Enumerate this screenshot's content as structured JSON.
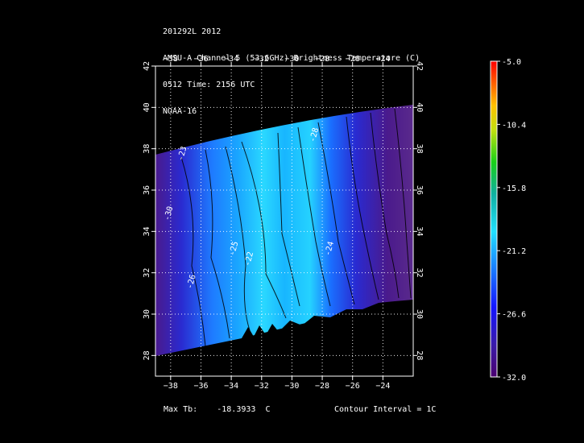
{
  "header": {
    "line1": "201292L 2012",
    "line2": "AMSU-A Channel 5 (53.6GHz) Brightness Temperature (C)",
    "line3": "0512 Time: 2156 UTC",
    "line4": "NOAA-16"
  },
  "footer": {
    "max_label": "Max Tb:",
    "max_value": "-18.3933",
    "max_unit": "C",
    "contour_label": "Contour Interval = 1C"
  },
  "chart_data": {
    "type": "heatmap",
    "xlim": [
      -39,
      -22
    ],
    "ylim": [
      27,
      42
    ],
    "x_ticks": [
      -38,
      -36,
      -34,
      -32,
      -30,
      -28,
      -26,
      -24
    ],
    "y_ticks": [
      28,
      30,
      32,
      34,
      36,
      38,
      40,
      42
    ],
    "grid": true,
    "colorbar": {
      "ticks": [
        "-5.0",
        "-10.4",
        "-15.8",
        "-21.2",
        "-26.6",
        "-32.0"
      ],
      "range": [
        -32.0,
        -5.0
      ]
    },
    "contour_labels": [
      "-23",
      "-22",
      "-24",
      "-25",
      "-26",
      "-28",
      "-30"
    ]
  }
}
